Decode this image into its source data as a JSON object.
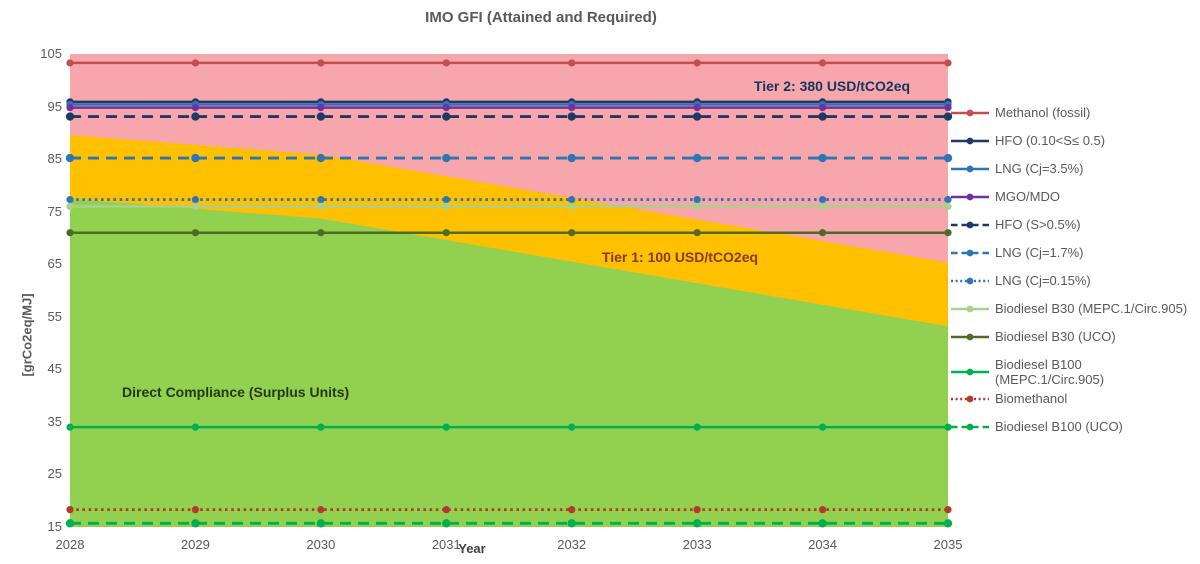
{
  "chart_data": {
    "type": "area",
    "title": "IMO GFI (Attained and Required)",
    "xlabel": "Year",
    "ylabel": "[grCo2eq/MJ]",
    "x": [
      2028,
      2029,
      2030,
      2031,
      2032,
      2033,
      2034,
      2035
    ],
    "ylim": [
      15,
      105
    ],
    "yticks": [
      105,
      95,
      85,
      75,
      65,
      55,
      45,
      35,
      25,
      15
    ],
    "grid": false,
    "legend_position": "right",
    "regions": [
      {
        "name": "tier2",
        "label": "Tier 2: 380 USD/tCO2eq",
        "color": "#F7A6AB",
        "label_color": "#17365D"
      },
      {
        "name": "tier1",
        "label": "Tier 1: 100 USD/tCO2eq",
        "color": "#FFC000",
        "label_color": "#843C0C"
      },
      {
        "name": "direct-compliance",
        "label": "Direct Compliance (Surplus Units)",
        "color": "#92D050",
        "label_color": "#263A12"
      }
    ],
    "boundaries": {
      "base_target": [
        89.57,
        87.7,
        85.84,
        81.73,
        77.63,
        73.52,
        69.42,
        65.31
      ],
      "direct_compliance_target": [
        77.44,
        75.57,
        73.7,
        69.6,
        65.49,
        61.39,
        57.28,
        53.18
      ]
    },
    "series": [
      {
        "name": "Methanol (fossil)",
        "value": 103.3,
        "color": "#C0504D",
        "style": "solid"
      },
      {
        "name": "HFO (0.10<S≤ 0.5)",
        "value": 95.9,
        "color": "#1F3864",
        "style": "solid"
      },
      {
        "name": "LNG (Cj=3.5%)",
        "value": 95.4,
        "color": "#2E75B6",
        "style": "solid"
      },
      {
        "name": "MGO/MDO",
        "value": 94.8,
        "color": "#7030A0",
        "style": "solid"
      },
      {
        "name": "HFO (S>0.5%)",
        "value": 93.1,
        "color": "#1F3864",
        "style": "dashed"
      },
      {
        "name": "LNG (Cj=1.7%)",
        "value": 85.2,
        "color": "#2E75B6",
        "style": "dashed"
      },
      {
        "name": "LNG (Cj=0.15%)",
        "value": 77.3,
        "color": "#2E75B6",
        "style": "dotted"
      },
      {
        "name": "Biodiesel B30 (MEPC.1/Circ.905)",
        "value": 76.0,
        "color": "#A9D18E",
        "style": "solid"
      },
      {
        "name": "Biodiesel B30 (UCO)",
        "value": 71.0,
        "color": "#4F6B28",
        "style": "solid"
      },
      {
        "name": "Biodiesel B100\n(MEPC.1/Circ.905)",
        "value": 34.0,
        "color": "#00B050",
        "style": "solid"
      },
      {
        "name": "Biomethanol",
        "value": 18.3,
        "color": "#B03A2E",
        "style": "dotted"
      },
      {
        "name": "Biodiesel B100 (UCO)",
        "value": 15.7,
        "color": "#00B050",
        "style": "dashed"
      }
    ]
  }
}
